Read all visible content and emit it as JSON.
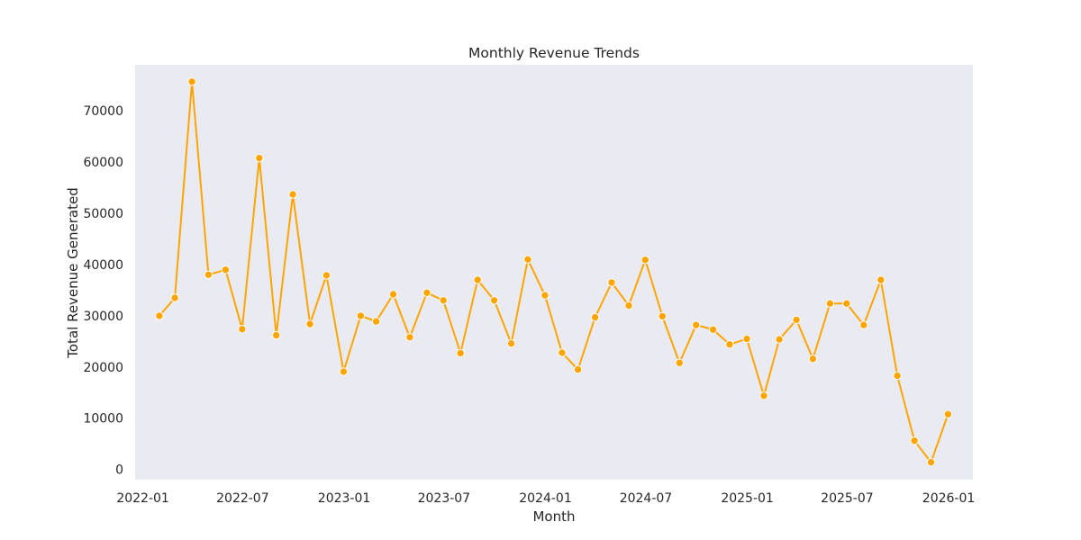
{
  "chart_data": {
    "type": "line",
    "title": "Monthly Revenue Trends",
    "xlabel": "Month",
    "ylabel": "Total Revenue Generated",
    "x_ticks": [
      "2022-01",
      "2022-07",
      "2023-01",
      "2023-07",
      "2024-01",
      "2024-07",
      "2025-01",
      "2025-07",
      "2026-01"
    ],
    "y_ticks": [
      0,
      10000,
      20000,
      30000,
      40000,
      50000,
      60000,
      70000
    ],
    "ylim": [
      -2000,
      79000
    ],
    "xlim": [
      "2021-12-18",
      "2026-02-14"
    ],
    "grid": false,
    "colors": {
      "line": "#FFA500",
      "marker": "#FFA500",
      "marker_edge": "#ffffff",
      "plot_bg": "#EAEAF2"
    },
    "series": [
      {
        "x": [
          "2022-01-31",
          "2022-02-28",
          "2022-03-31",
          "2022-04-30",
          "2022-05-31",
          "2022-06-30",
          "2022-07-31",
          "2022-08-31",
          "2022-09-30",
          "2022-10-31",
          "2022-11-30",
          "2022-12-31",
          "2023-01-31",
          "2023-02-28",
          "2023-03-31",
          "2023-04-30",
          "2023-05-31",
          "2023-06-30",
          "2023-07-31",
          "2023-08-31",
          "2023-09-30",
          "2023-10-31",
          "2023-11-30",
          "2023-12-31",
          "2024-01-31",
          "2024-02-29",
          "2024-03-31",
          "2024-04-30",
          "2024-05-31",
          "2024-06-30",
          "2024-07-31",
          "2024-08-31",
          "2024-09-30",
          "2024-10-31",
          "2024-11-30",
          "2024-12-31",
          "2025-01-31",
          "2025-02-28",
          "2025-03-31",
          "2025-04-30",
          "2025-05-31",
          "2025-06-30",
          "2025-07-31",
          "2025-08-31",
          "2025-09-30",
          "2025-10-31",
          "2025-11-30",
          "2025-12-31"
        ],
        "y": [
          30000,
          33500,
          75700,
          38000,
          39000,
          27400,
          60800,
          26200,
          53700,
          28400,
          37900,
          19100,
          30000,
          28900,
          34200,
          25800,
          34500,
          33000,
          22700,
          37000,
          33000,
          24600,
          41000,
          34000,
          22800,
          19500,
          29700,
          36500,
          32000,
          40900,
          29900,
          20800,
          28200,
          27300,
          24400,
          25500,
          14400,
          25400,
          29200,
          21600,
          32400,
          32400,
          28200,
          37000,
          18300,
          5600,
          1400,
          10800
        ]
      }
    ]
  }
}
